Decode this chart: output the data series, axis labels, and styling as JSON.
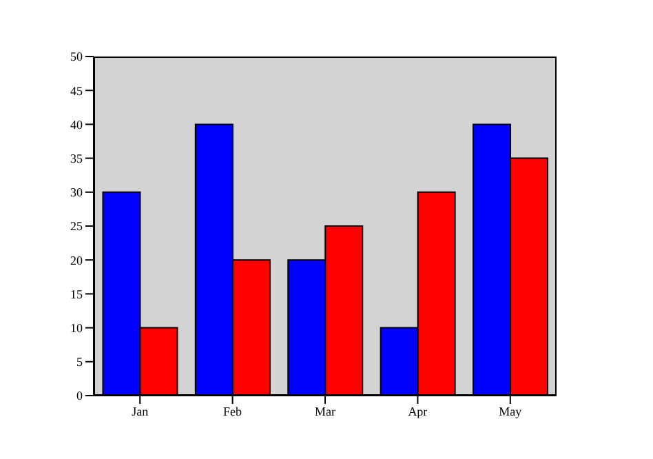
{
  "chart_data": {
    "type": "bar",
    "categories": [
      "Jan",
      "Feb",
      "Mar",
      "Apr",
      "May"
    ],
    "series": [
      {
        "color": "#0000ff",
        "values": [
          30,
          40,
          20,
          10,
          40
        ]
      },
      {
        "color": "#ff0000",
        "values": [
          10,
          20,
          25,
          30,
          35
        ]
      }
    ],
    "ylim": [
      0,
      50
    ],
    "yticks": [
      0,
      5,
      10,
      15,
      20,
      25,
      30,
      35,
      40,
      45,
      50
    ],
    "grid": false,
    "legend": false
  }
}
